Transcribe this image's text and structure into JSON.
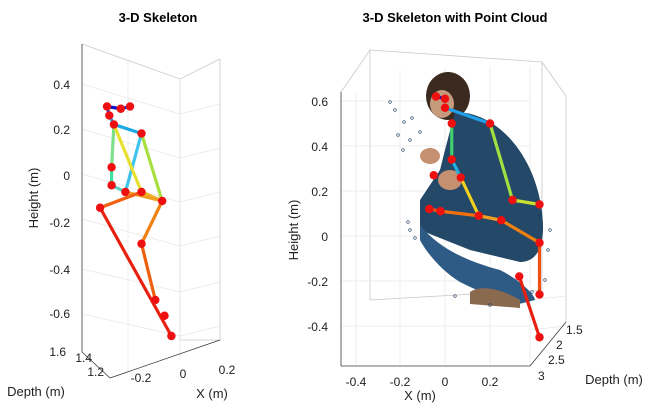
{
  "chart_data": [
    {
      "type": "skeleton-3d",
      "title": "3-D Skeleton",
      "xlabel": "X (m)",
      "ylabel": "Height (m)",
      "zlabel": "Depth (m)",
      "xticks": [
        "-0.2",
        "0",
        "0.2"
      ],
      "yticks": [
        "0.4",
        "0.2",
        "0",
        "-0.2",
        "-0.4",
        "-0.6"
      ],
      "zticks": [
        "1.6",
        "1.4",
        "1.2"
      ],
      "joints": [
        {
          "x": -0.1,
          "y": 0.3,
          "z": 1.3
        },
        {
          "x": -0.04,
          "y": 0.29,
          "z": 1.3
        },
        {
          "x": 0.0,
          "y": 0.3,
          "z": 1.3
        },
        {
          "x": -0.09,
          "y": 0.26,
          "z": 1.3
        },
        {
          "x": -0.07,
          "y": 0.22,
          "z": 1.3
        },
        {
          "x": 0.05,
          "y": 0.18,
          "z": 1.3
        },
        {
          "x": 0.05,
          "y": -0.08,
          "z": 1.3
        },
        {
          "x": -0.02,
          "y": -0.08,
          "z": 1.3
        },
        {
          "x": -0.08,
          "y": 0.03,
          "z": 1.3
        },
        {
          "x": -0.08,
          "y": -0.05,
          "z": 1.3
        },
        {
          "x": 0.14,
          "y": -0.12,
          "z": 1.3
        },
        {
          "x": -0.13,
          "y": -0.15,
          "z": 1.3
        },
        {
          "x": 0.05,
          "y": -0.31,
          "z": 1.3
        },
        {
          "x": 0.11,
          "y": -0.56,
          "z": 1.3
        },
        {
          "x": 0.18,
          "y": -0.72,
          "z": 1.3
        },
        {
          "x": 0.15,
          "y": -0.63,
          "z": 1.3
        }
      ],
      "bones": [
        {
          "from": 0,
          "to": 1,
          "color": "#1010c8"
        },
        {
          "from": 1,
          "to": 2,
          "color": "#1a28d8"
        },
        {
          "from": 0,
          "to": 3,
          "color": "#2040e0"
        },
        {
          "from": 3,
          "to": 4,
          "color": "#2aa0e8"
        },
        {
          "from": 4,
          "to": 5,
          "color": "#1aa8e6"
        },
        {
          "from": 4,
          "to": 8,
          "color": "#7ee08a"
        },
        {
          "from": 8,
          "to": 9,
          "color": "#3ee0a0"
        },
        {
          "from": 9,
          "to": 7,
          "color": "#5ad0c0"
        },
        {
          "from": 5,
          "to": 7,
          "color": "#40c4ee"
        },
        {
          "from": 5,
          "to": 10,
          "color": "#a8e040"
        },
        {
          "from": 4,
          "to": 6,
          "color": "#e8e030"
        },
        {
          "from": 6,
          "to": 10,
          "color": "#f0b020"
        },
        {
          "from": 7,
          "to": 10,
          "color": "#f0a020"
        },
        {
          "from": 6,
          "to": 11,
          "color": "#f06010"
        },
        {
          "from": 10,
          "to": 12,
          "color": "#f08010"
        },
        {
          "from": 12,
          "to": 13,
          "color": "#ee6010"
        },
        {
          "from": 11,
          "to": 14,
          "color": "#e82010"
        }
      ]
    },
    {
      "type": "skeleton-3d-pointcloud",
      "title": "3-D Skeleton with Point Cloud",
      "xlabel": "X (m)",
      "ylabel": "Height (m)",
      "zlabel": "Depth (m)",
      "xticks": [
        "-0.4",
        "-0.2",
        "0",
        "0.2"
      ],
      "yticks": [
        "0.6",
        "0.4",
        "0.2",
        "0",
        "-0.2",
        "-0.4"
      ],
      "zticks": [
        "1.5",
        "2",
        "2.5",
        "3"
      ],
      "joints": [
        {
          "x": -0.04,
          "y": 0.62,
          "z": 2.0
        },
        {
          "x": 0.0,
          "y": 0.61,
          "z": 2.0
        },
        {
          "x": 0.0,
          "y": 0.57,
          "z": 2.0
        },
        {
          "x": 0.2,
          "y": 0.5,
          "z": 2.0
        },
        {
          "x": 0.03,
          "y": 0.5,
          "z": 2.0
        },
        {
          "x": 0.03,
          "y": 0.34,
          "z": 2.0
        },
        {
          "x": 0.07,
          "y": 0.26,
          "z": 2.0
        },
        {
          "x": 0.3,
          "y": 0.16,
          "z": 2.0
        },
        {
          "x": -0.05,
          "y": 0.27,
          "z": 2.0
        },
        {
          "x": 0.42,
          "y": 0.14,
          "z": 2.0
        },
        {
          "x": -0.02,
          "y": 0.11,
          "z": 2.0
        },
        {
          "x": 0.15,
          "y": 0.09,
          "z": 2.0
        },
        {
          "x": 0.25,
          "y": 0.07,
          "z": 2.0
        },
        {
          "x": -0.07,
          "y": 0.12,
          "z": 2.0
        },
        {
          "x": 0.42,
          "y": -0.03,
          "z": 2.0
        },
        {
          "x": 0.33,
          "y": -0.18,
          "z": 2.0
        },
        {
          "x": 0.42,
          "y": -0.26,
          "z": 2.0
        },
        {
          "x": 0.42,
          "y": -0.45,
          "z": 2.0
        }
      ],
      "bones": [
        {
          "from": 0,
          "to": 1,
          "color": "#1010c8"
        },
        {
          "from": 2,
          "to": 3,
          "color": "#20a0e8"
        },
        {
          "from": 4,
          "to": 5,
          "color": "#40d070"
        },
        {
          "from": 5,
          "to": 6,
          "color": "#20b0e0"
        },
        {
          "from": 3,
          "to": 7,
          "color": "#a0e040"
        },
        {
          "from": 7,
          "to": 9,
          "color": "#c8e030"
        },
        {
          "from": 6,
          "to": 11,
          "color": "#f0d020"
        },
        {
          "from": 11,
          "to": 12,
          "color": "#f0a020"
        },
        {
          "from": 13,
          "to": 10,
          "color": "#f05010"
        },
        {
          "from": 10,
          "to": 11,
          "color": "#f07010"
        },
        {
          "from": 12,
          "to": 14,
          "color": "#f08010"
        },
        {
          "from": 14,
          "to": 16,
          "color": "#f05010"
        },
        {
          "from": 15,
          "to": 17,
          "color": "#e82010"
        }
      ]
    }
  ]
}
